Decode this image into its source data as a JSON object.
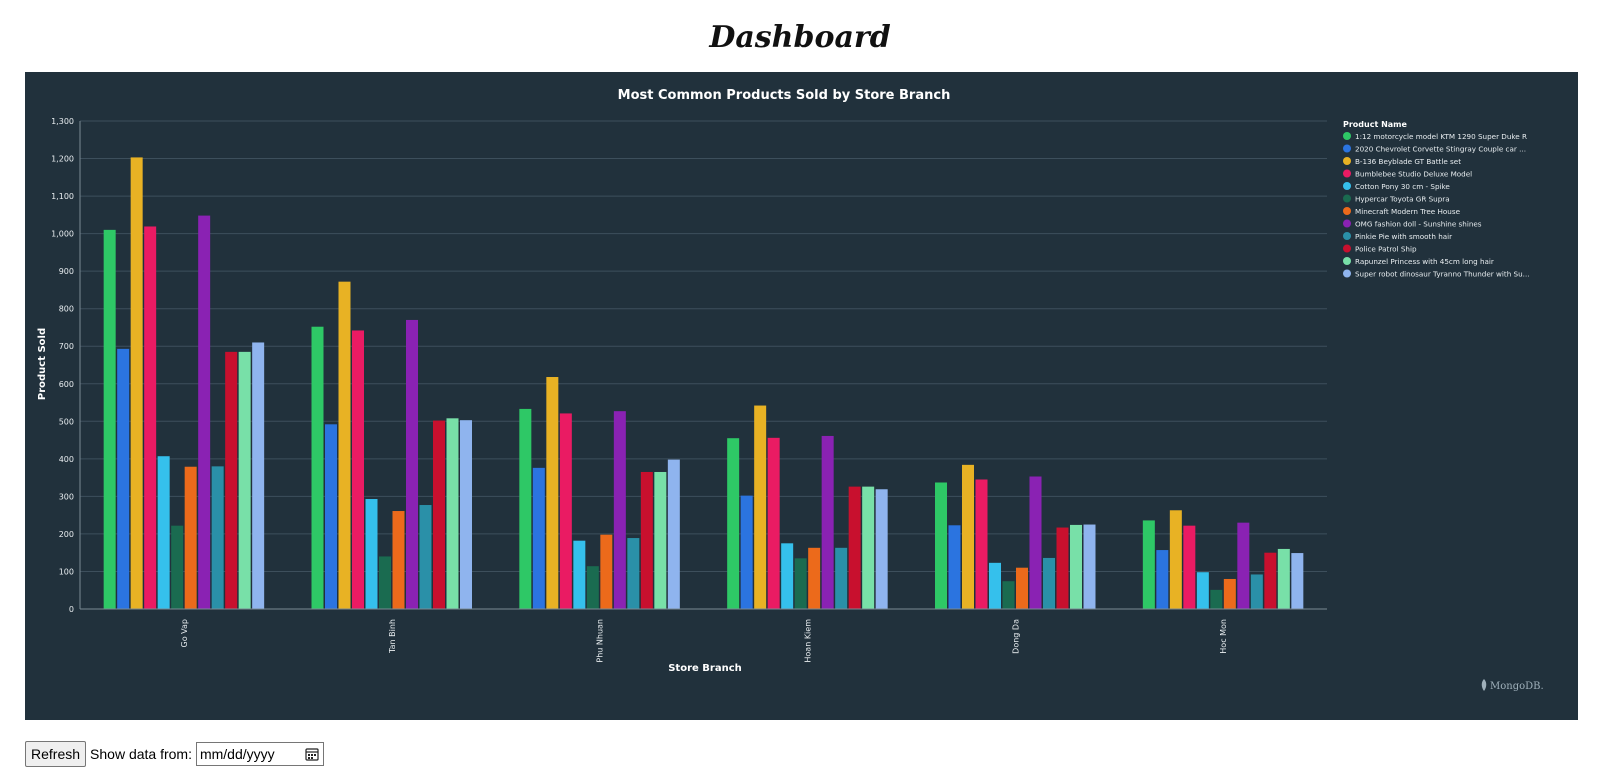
{
  "page": {
    "title": "Dashboard"
  },
  "chart_data": {
    "type": "bar",
    "title": "Most Common Products Sold by Store Branch",
    "xlabel": "Store Branch",
    "ylabel": "Product Sold",
    "ylim": [
      0,
      1300
    ],
    "yticks": [
      "0",
      "100",
      "200",
      "300",
      "400",
      "500",
      "600",
      "700",
      "800",
      "900",
      "1,000",
      "1,100",
      "1,200",
      "1,300"
    ],
    "grid": true,
    "legend_title": "Product Name",
    "legend_position": "right",
    "categories": [
      "Go Vap",
      "Tan Binh",
      "Phu Nhuan",
      "Hoan Kiem",
      "Dong Da",
      "Hoc Mon"
    ],
    "series": [
      {
        "name": "1:12 motorcycle model KTM 1290 Super Duke R",
        "color": "#2ec866",
        "values": [
          1010,
          752,
          533,
          455,
          337,
          236
        ]
      },
      {
        "name": "2020 Chevrolet Corvette Stingray Couple car ...",
        "color": "#2b74e0",
        "values": [
          693,
          492,
          376,
          302,
          223,
          157
        ]
      },
      {
        "name": "B-136 Beyblade GT Battle set",
        "color": "#e8b224",
        "values": [
          1203,
          872,
          618,
          542,
          384,
          263
        ]
      },
      {
        "name": "Bumblebee Studio Deluxe Model",
        "color": "#ea1b63",
        "values": [
          1019,
          742,
          521,
          456,
          345,
          222
        ]
      },
      {
        "name": "Cotton Pony 30 cm - Spike",
        "color": "#35c0ec",
        "values": [
          407,
          293,
          182,
          175,
          123,
          98
        ]
      },
      {
        "name": "Hypercar Toyota GR Supra",
        "color": "#1a6b50",
        "values": [
          222,
          140,
          114,
          135,
          74,
          51
        ]
      },
      {
        "name": "Minecraft Modern Tree House",
        "color": "#ec6a1b",
        "values": [
          379,
          261,
          198,
          163,
          110,
          80
        ]
      },
      {
        "name": "OMG fashion doll - Sunshine shines",
        "color": "#8a22b3",
        "values": [
          1048,
          770,
          527,
          461,
          353,
          230
        ]
      },
      {
        "name": "Pinkie Pie with smooth hair",
        "color": "#2a90a8",
        "values": [
          380,
          277,
          189,
          163,
          136,
          92
        ]
      },
      {
        "name": "Police Patrol Ship",
        "color": "#c8102e",
        "values": [
          685,
          502,
          365,
          326,
          217,
          150
        ]
      },
      {
        "name": "Rapunzel Princess with 45cm long hair",
        "color": "#78e0a8",
        "values": [
          685,
          508,
          365,
          326,
          224,
          160
        ]
      },
      {
        "name": "Super robot dinosaur Tyranno Thunder with Su...",
        "color": "#8fb4ee",
        "values": [
          710,
          503,
          398,
          319,
          225,
          149
        ]
      }
    ],
    "watermark": "MongoDB."
  },
  "controls": {
    "refresh_label": "Refresh",
    "date_label": "Show data from:",
    "date_placeholder": "mm/dd/yyyy"
  }
}
